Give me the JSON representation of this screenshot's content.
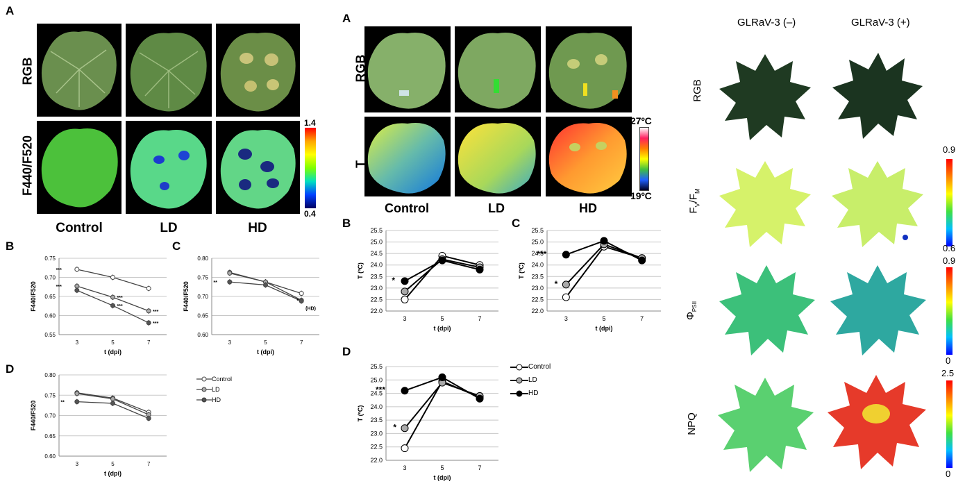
{
  "left": {
    "panel_A": "A",
    "row_labels": [
      "RGB",
      "F440/F520"
    ],
    "columns": [
      "Control",
      "LD",
      "HD"
    ],
    "colorbar": {
      "max": "1.4",
      "min": "0.4"
    },
    "chart_B": {
      "letter": "B"
    },
    "chart_C": {
      "letter": "C"
    },
    "chart_D": {
      "letter": "D"
    },
    "legend": [
      "Control",
      "LD",
      "HD"
    ]
  },
  "middle": {
    "panel_A": "A",
    "row_labels": [
      "RGB",
      "T"
    ],
    "columns": [
      "Control",
      "LD",
      "HD"
    ],
    "colorbar": {
      "max": "27ºC",
      "min": "19ºC"
    },
    "chart_B": {
      "letter": "B"
    },
    "chart_C": {
      "letter": "C"
    },
    "chart_D": {
      "letter": "D"
    },
    "legend": [
      "Control",
      "LD",
      "HD"
    ]
  },
  "right": {
    "columns": [
      "GLRaV-3 (–)",
      "GLRaV-3 (+)"
    ],
    "row_labels": {
      "rgb": "RGB",
      "fv_base": "F",
      "fv_sub1": "V",
      "fv_slash": "/F",
      "fv_sub2": "M",
      "phi": "Φ",
      "phi_sub": "PSII",
      "npq": "NPQ"
    },
    "colorbars": [
      {
        "max": "0.9",
        "min": "0.6"
      },
      {
        "max": "0.9",
        "min": "0"
      },
      {
        "max": "2.5",
        "min": "0"
      }
    ]
  },
  "chart_data": [
    {
      "id": "left-B",
      "type": "line",
      "title": "",
      "xlabel": "t (dpi)",
      "ylabel": "F440/F520",
      "x": [
        3,
        5,
        7
      ],
      "ylim": [
        0.55,
        0.75
      ],
      "yticks": [
        "0.55",
        "0.60",
        "0.65",
        "0.70",
        "0.75"
      ],
      "series": [
        {
          "name": "Control",
          "values": [
            0.721,
            0.7,
            0.671
          ]
        },
        {
          "name": "LD",
          "values": [
            0.677,
            0.648,
            0.612
          ]
        },
        {
          "name": "HD",
          "values": [
            0.666,
            0.626,
            0.581
          ]
        }
      ],
      "annotations": [
        "***",
        "***",
        "***",
        "***",
        "***",
        "***"
      ]
    },
    {
      "id": "left-C",
      "type": "line",
      "xlabel": "t (dpi)",
      "ylabel": "F440/F520",
      "x": [
        3,
        5,
        7
      ],
      "ylim": [
        0.6,
        0.8
      ],
      "yticks": [
        "0.60",
        "0.65",
        "0.70",
        "0.75",
        "0.80"
      ],
      "series": [
        {
          "name": "Control",
          "values": [
            0.763,
            0.738,
            0.708
          ]
        },
        {
          "name": "LD",
          "values": [
            0.761,
            0.738,
            0.69
          ]
        },
        {
          "name": "HD",
          "values": [
            0.738,
            0.73,
            0.688
          ]
        }
      ],
      "annotations": [
        "**",
        "*",
        "(HD)"
      ]
    },
    {
      "id": "left-D",
      "type": "line",
      "xlabel": "t (dpi)",
      "ylabel": "F440/F520",
      "x": [
        3,
        5,
        7
      ],
      "ylim": [
        0.6,
        0.8
      ],
      "yticks": [
        "0.60",
        "0.65",
        "0.70",
        "0.75",
        "0.80"
      ],
      "series": [
        {
          "name": "Control",
          "values": [
            0.756,
            0.743,
            0.708
          ]
        },
        {
          "name": "LD",
          "values": [
            0.754,
            0.741,
            0.702
          ]
        },
        {
          "name": "HD",
          "values": [
            0.734,
            0.73,
            0.693
          ]
        }
      ],
      "annotations": [
        "**"
      ]
    },
    {
      "id": "mid-B",
      "type": "line",
      "xlabel": "t (dpi)",
      "ylabel": "T (ºC)",
      "x": [
        3,
        5,
        7
      ],
      "ylim": [
        22.0,
        25.5
      ],
      "yticks": [
        "22.0",
        "22.5",
        "23.0",
        "23.5",
        "24.0",
        "24.5",
        "25.0",
        "25.5"
      ],
      "series": [
        {
          "name": "Control",
          "values": [
            22.5,
            24.4,
            24.0
          ]
        },
        {
          "name": "LD",
          "values": [
            22.85,
            24.25,
            23.9
          ]
        },
        {
          "name": "HD",
          "values": [
            23.3,
            24.2,
            23.8
          ]
        }
      ],
      "annotations": [
        "*"
      ]
    },
    {
      "id": "mid-C",
      "type": "line",
      "xlabel": "t (dpi)",
      "ylabel": "T (ºC)",
      "x": [
        3,
        5,
        7
      ],
      "ylim": [
        22.0,
        25.5
      ],
      "yticks": [
        "22.0",
        "22.5",
        "23.0",
        "23.5",
        "24.0",
        "24.5",
        "25.0",
        "25.5"
      ],
      "series": [
        {
          "name": "Control",
          "values": [
            22.6,
            24.8,
            24.3
          ]
        },
        {
          "name": "LD",
          "values": [
            23.15,
            24.9,
            24.3
          ]
        },
        {
          "name": "HD",
          "values": [
            24.45,
            25.05,
            24.2
          ]
        }
      ],
      "annotations": [
        "***",
        "*"
      ]
    },
    {
      "id": "mid-D",
      "type": "line",
      "xlabel": "t (dpi)",
      "ylabel": "T (ºC)",
      "x": [
        3,
        5,
        7
      ],
      "ylim": [
        22.0,
        25.5
      ],
      "yticks": [
        "22.0",
        "22.5",
        "23.0",
        "23.5",
        "24.0",
        "24.5",
        "25.0",
        "25.5"
      ],
      "series": [
        {
          "name": "Control",
          "values": [
            22.45,
            24.95,
            24.35
          ]
        },
        {
          "name": "LD",
          "values": [
            23.2,
            24.9,
            24.4
          ]
        },
        {
          "name": "HD",
          "values": [
            24.6,
            25.1,
            24.3
          ]
        }
      ],
      "annotations": [
        "***",
        "*"
      ]
    }
  ]
}
